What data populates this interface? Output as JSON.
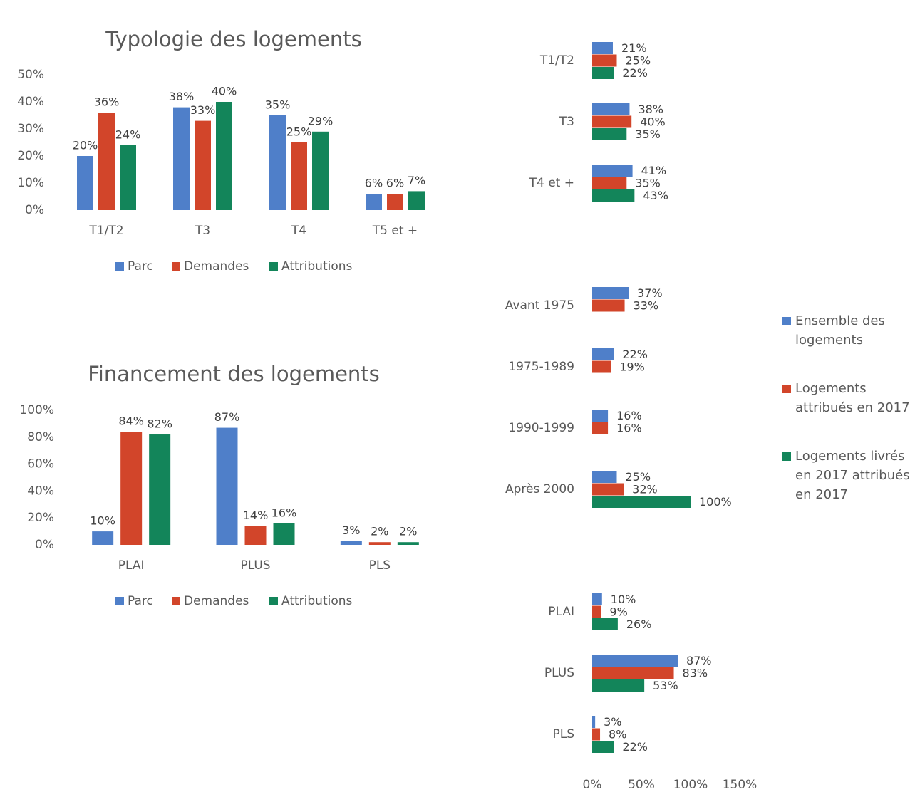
{
  "chart_data": [
    {
      "type": "bar",
      "title": "Typologie des logements",
      "categories": [
        "T1/T2",
        "T3",
        "T4",
        "T5 et +"
      ],
      "series": [
        {
          "name": "Parc",
          "color": "#4f7fc9",
          "values": [
            20,
            38,
            35,
            6
          ],
          "value_labels": [
            "20%",
            "38%",
            "35%",
            "6%"
          ]
        },
        {
          "name": "Demandes",
          "color": "#d2452a",
          "values": [
            36,
            33,
            25,
            6
          ],
          "value_labels": [
            "36%",
            "33%",
            "25%",
            "6%"
          ]
        },
        {
          "name": "Attributions",
          "color": "#13855a",
          "values": [
            24,
            40,
            29,
            7
          ],
          "value_labels": [
            "24%",
            "40%",
            "29%",
            "7%"
          ]
        }
      ],
      "ylim": [
        0,
        50
      ],
      "yticks": [
        {
          "value": 0,
          "label": "0%"
        },
        {
          "value": 10,
          "label": "10%"
        },
        {
          "value": 20,
          "label": "20%"
        },
        {
          "value": 30,
          "label": "30%"
        },
        {
          "value": 40,
          "label": "40%"
        },
        {
          "value": 50,
          "label": "50%"
        }
      ],
      "legend": "bottom"
    },
    {
      "type": "bar",
      "title": "Financement des logements",
      "categories": [
        "PLAI",
        "PLUS",
        "PLS"
      ],
      "series": [
        {
          "name": "Parc",
          "color": "#4f7fc9",
          "values": [
            10,
            87,
            3
          ],
          "value_labels": [
            "10%",
            "87%",
            "3%"
          ]
        },
        {
          "name": "Demandes",
          "color": "#d2452a",
          "values": [
            84,
            14,
            2
          ],
          "value_labels": [
            "84%",
            "14%",
            "2%"
          ]
        },
        {
          "name": "Attributions",
          "color": "#13855a",
          "values": [
            82,
            16,
            2
          ],
          "value_labels": [
            "82%",
            "16%",
            "2%"
          ]
        }
      ],
      "ylim": [
        0,
        100
      ],
      "yticks": [
        {
          "value": 0,
          "label": "0%"
        },
        {
          "value": 20,
          "label": "20%"
        },
        {
          "value": 40,
          "label": "40%"
        },
        {
          "value": 60,
          "label": "60%"
        },
        {
          "value": 80,
          "label": "80%"
        },
        {
          "value": 100,
          "label": "100%"
        }
      ],
      "legend": "bottom"
    },
    {
      "type": "barh",
      "categories": [
        "T1/T2",
        "T3",
        "T4 et +",
        "Avant 1975",
        "1975-1989",
        "1990-1999",
        "Après 2000",
        "PLAI",
        "PLUS",
        "PLS"
      ],
      "series": [
        {
          "name": "Ensemble des logements",
          "color": "#4f7fc9",
          "values": [
            21,
            38,
            41,
            37,
            22,
            16,
            25,
            10,
            87,
            3
          ],
          "value_labels": [
            "21%",
            "38%",
            "41%",
            "37%",
            "22%",
            "16%",
            "25%",
            "10%",
            "87%",
            "3%"
          ]
        },
        {
          "name": "Logements attribués en 2017",
          "color": "#d2452a",
          "values": [
            25,
            40,
            35,
            33,
            19,
            16,
            32,
            9,
            83,
            8
          ],
          "value_labels": [
            "25%",
            "40%",
            "35%",
            "33%",
            "19%",
            "16%",
            "32%",
            "9%",
            "83%",
            "8%"
          ]
        },
        {
          "name": "Logements livrés en 2017 attribués en 2017",
          "color": "#13855a",
          "values": [
            22,
            35,
            43,
            null,
            null,
            null,
            100,
            26,
            53,
            22
          ],
          "value_labels": [
            "22%",
            "35%",
            "43%",
            null,
            null,
            null,
            "100%",
            "26%",
            "53%",
            "22%"
          ]
        }
      ],
      "xlim": [
        0,
        150
      ],
      "xticks": [
        {
          "value": 0,
          "label": "0%"
        },
        {
          "value": 50,
          "label": "50%"
        },
        {
          "value": 100,
          "label": "100%"
        },
        {
          "value": 150,
          "label": "150%"
        }
      ],
      "legend": "right"
    }
  ]
}
